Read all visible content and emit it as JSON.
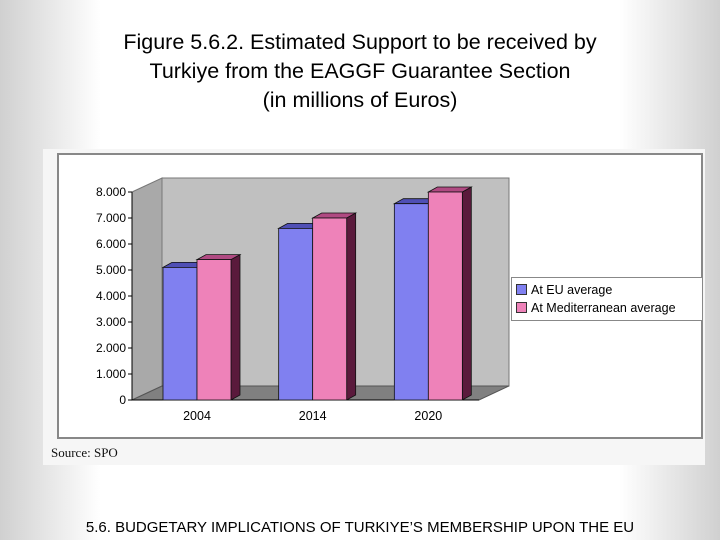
{
  "title": {
    "line1": "Figure 5.6.2. Estimated Support to be received by",
    "line2": "Turkiye from the EAGGF Guarantee Section",
    "line3": "(in millions of Euros)"
  },
  "source": "Source: SPO",
  "footer": "5.6. BUDGETARY IMPLICATIONS OF TURKIYE’S MEMBERSHIP UPON THE EU",
  "chart_data": {
    "type": "bar",
    "categories": [
      "2004",
      "2014",
      "2020"
    ],
    "series": [
      {
        "name": "At EU average",
        "values": [
          5100,
          6600,
          7550
        ],
        "color": "#8080f0",
        "side_color": "#2a2a7a",
        "top_color": "#4f4fb5"
      },
      {
        "name": "At Mediterranean average",
        "values": [
          5400,
          7000,
          8000
        ],
        "color": "#ee82b9",
        "side_color": "#5a1a3c",
        "top_color": "#b04a82"
      }
    ],
    "ylim": [
      0,
      8000
    ],
    "yticks": [
      0,
      1000,
      2000,
      3000,
      4000,
      5000,
      6000,
      7000,
      8000
    ],
    "ytick_labels": [
      "0",
      "1.000",
      "2.000",
      "3.000",
      "4.000",
      "5.000",
      "6.000",
      "7.000",
      "8.000"
    ],
    "grid": false,
    "legend_position": "right",
    "wall_color": "#c0c0c0",
    "floor_color": "#808080"
  }
}
